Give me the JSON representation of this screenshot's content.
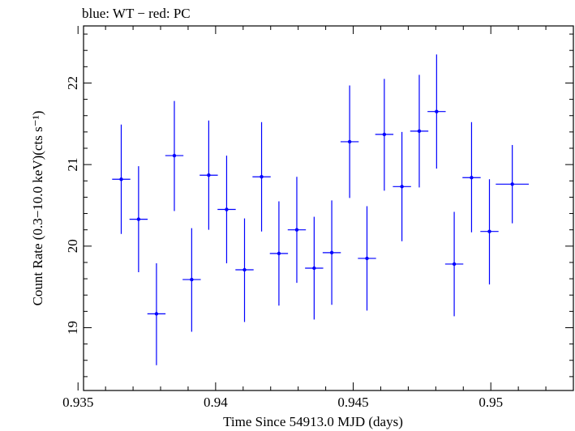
{
  "chart_data": {
    "type": "scatter",
    "title": "blue: WT − red: PC",
    "xlabel": "Time Since 54913.0 MJD (days)",
    "ylabel": "Count Rate (0.3−10.0 keV)(cts s⁻¹)",
    "xlim": [
      0.9352,
      0.953
    ],
    "ylim": [
      18.23,
      22.7
    ],
    "xticks": [
      0.935,
      0.94,
      0.945,
      0.95
    ],
    "xtick_labels": [
      "0.935",
      "0.94",
      "0.945",
      "0.95"
    ],
    "yticks": [
      19,
      20,
      21,
      22
    ],
    "ytick_labels": [
      "19",
      "20",
      "21",
      "22"
    ],
    "grid": false,
    "series": [
      {
        "color": "#0000ff",
        "points": [
          {
            "x": 0.93657,
            "y": 20.82,
            "xerr": 0.00033,
            "yerr_low": 0.67,
            "yerr_high": 0.67
          },
          {
            "x": 0.9372,
            "y": 20.33,
            "xerr": 0.00033,
            "yerr_low": 0.65,
            "yerr_high": 0.65
          },
          {
            "x": 0.93785,
            "y": 19.17,
            "xerr": 0.00033,
            "yerr_low": 0.63,
            "yerr_high": 0.62
          },
          {
            "x": 0.9385,
            "y": 21.11,
            "xerr": 0.00033,
            "yerr_low": 0.68,
            "yerr_high": 0.67
          },
          {
            "x": 0.93913,
            "y": 19.59,
            "xerr": 0.00033,
            "yerr_low": 0.64,
            "yerr_high": 0.63
          },
          {
            "x": 0.93975,
            "y": 20.87,
            "xerr": 0.00033,
            "yerr_low": 0.67,
            "yerr_high": 0.67
          },
          {
            "x": 0.9404,
            "y": 20.45,
            "xerr": 0.00033,
            "yerr_low": 0.66,
            "yerr_high": 0.66
          },
          {
            "x": 0.94105,
            "y": 19.71,
            "xerr": 0.00033,
            "yerr_low": 0.64,
            "yerr_high": 0.63
          },
          {
            "x": 0.94167,
            "y": 20.85,
            "xerr": 0.00033,
            "yerr_low": 0.67,
            "yerr_high": 0.67
          },
          {
            "x": 0.9423,
            "y": 19.91,
            "xerr": 0.00033,
            "yerr_low": 0.64,
            "yerr_high": 0.64
          },
          {
            "x": 0.94295,
            "y": 20.2,
            "xerr": 0.00033,
            "yerr_low": 0.65,
            "yerr_high": 0.65
          },
          {
            "x": 0.94358,
            "y": 19.73,
            "xerr": 0.00033,
            "yerr_low": 0.63,
            "yerr_high": 0.63
          },
          {
            "x": 0.94422,
            "y": 19.92,
            "xerr": 0.00033,
            "yerr_low": 0.64,
            "yerr_high": 0.64
          },
          {
            "x": 0.94487,
            "y": 21.28,
            "xerr": 0.00033,
            "yerr_low": 0.69,
            "yerr_high": 0.69
          },
          {
            "x": 0.9455,
            "y": 19.85,
            "xerr": 0.00033,
            "yerr_low": 0.64,
            "yerr_high": 0.64
          },
          {
            "x": 0.94613,
            "y": 21.37,
            "xerr": 0.00033,
            "yerr_low": 0.69,
            "yerr_high": 0.68
          },
          {
            "x": 0.94677,
            "y": 20.73,
            "xerr": 0.00033,
            "yerr_low": 0.67,
            "yerr_high": 0.67
          },
          {
            "x": 0.9474,
            "y": 21.41,
            "xerr": 0.00033,
            "yerr_low": 0.69,
            "yerr_high": 0.69
          },
          {
            "x": 0.94803,
            "y": 21.65,
            "xerr": 0.00033,
            "yerr_low": 0.7,
            "yerr_high": 0.7
          },
          {
            "x": 0.94867,
            "y": 19.78,
            "xerr": 0.00033,
            "yerr_low": 0.64,
            "yerr_high": 0.64
          },
          {
            "x": 0.9493,
            "y": 20.84,
            "xerr": 0.00033,
            "yerr_low": 0.67,
            "yerr_high": 0.68
          },
          {
            "x": 0.94995,
            "y": 20.18,
            "xerr": 0.00033,
            "yerr_low": 0.65,
            "yerr_high": 0.64
          },
          {
            "x": 0.95078,
            "y": 20.76,
            "xerr": 0.0006,
            "yerr_low": 0.48,
            "yerr_high": 0.48
          }
        ]
      }
    ]
  }
}
